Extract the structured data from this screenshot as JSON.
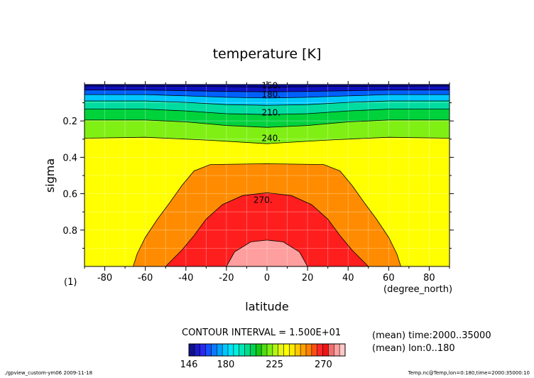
{
  "chart_data": {
    "type": "heatmap",
    "title": "temperature [K]",
    "xlabel": "latitude",
    "xunit": "(degree_north)",
    "ylabel": "sigma",
    "yunit": "(1)",
    "xlim": [
      -90,
      90
    ],
    "ylim": [
      0,
      1
    ],
    "y_inverted": true,
    "grid": true,
    "x_ticks": [
      -80,
      -60,
      -40,
      -20,
      0,
      20,
      40,
      60,
      80
    ],
    "y_ticks": [
      0.2,
      0.4,
      0.6,
      0.8
    ],
    "contour_levels": [
      150,
      165,
      180,
      195,
      210,
      225,
      240,
      255,
      270,
      285
    ],
    "contour_labels": [
      {
        "text": "150.",
        "x": 2,
        "y": 0.005
      },
      {
        "text": "180.",
        "x": 2,
        "y": 0.055
      },
      {
        "text": "210.",
        "x": 2,
        "y": 0.155
      },
      {
        "text": "240.",
        "x": 2,
        "y": 0.295
      },
      {
        "text": "270.",
        "x": -2,
        "y": 0.635
      }
    ],
    "fields": [
      {
        "level": 285,
        "points": [
          [
            -20,
            1.0
          ],
          [
            -16,
            0.92
          ],
          [
            -8,
            0.865
          ],
          [
            0,
            0.855
          ],
          [
            8,
            0.865
          ],
          [
            16,
            0.92
          ],
          [
            20,
            1.0
          ]
        ]
      },
      {
        "level": 270,
        "points": [
          [
            -50,
            1.0
          ],
          [
            -42,
            0.91
          ],
          [
            -36,
            0.83
          ],
          [
            -30,
            0.74
          ],
          [
            -22,
            0.66
          ],
          [
            -12,
            0.61
          ],
          [
            0,
            0.595
          ],
          [
            12,
            0.61
          ],
          [
            22,
            0.66
          ],
          [
            30,
            0.74
          ],
          [
            36,
            0.83
          ],
          [
            42,
            0.91
          ],
          [
            50,
            1.0
          ]
        ]
      },
      {
        "level": 255,
        "points": [
          [
            -66,
            1.0
          ],
          [
            -64,
            0.93
          ],
          [
            -60,
            0.84
          ],
          [
            -54,
            0.74
          ],
          [
            -48,
            0.65
          ],
          [
            -42,
            0.555
          ],
          [
            -36,
            0.475
          ],
          [
            -28,
            0.44
          ],
          [
            0,
            0.435
          ],
          [
            28,
            0.44
          ],
          [
            36,
            0.475
          ],
          [
            42,
            0.555
          ],
          [
            48,
            0.65
          ],
          [
            54,
            0.74
          ],
          [
            60,
            0.84
          ],
          [
            64,
            0.93
          ],
          [
            66,
            1.0
          ]
        ]
      },
      {
        "level": 240,
        "points": [
          [
            -90,
            0.295
          ],
          [
            -60,
            0.29
          ],
          [
            -30,
            0.305
          ],
          [
            0,
            0.325
          ],
          [
            30,
            0.305
          ],
          [
            60,
            0.29
          ],
          [
            90,
            0.295
          ]
        ]
      },
      {
        "level": 225,
        "points": [
          [
            -90,
            0.195
          ],
          [
            -60,
            0.195
          ],
          [
            -40,
            0.205
          ],
          [
            -20,
            0.225
          ],
          [
            0,
            0.235
          ],
          [
            20,
            0.225
          ],
          [
            40,
            0.205
          ],
          [
            60,
            0.195
          ],
          [
            90,
            0.195
          ]
        ]
      },
      {
        "level": 210,
        "points": [
          [
            -90,
            0.135
          ],
          [
            -60,
            0.135
          ],
          [
            -40,
            0.145
          ],
          [
            -20,
            0.16
          ],
          [
            0,
            0.165
          ],
          [
            20,
            0.16
          ],
          [
            40,
            0.145
          ],
          [
            60,
            0.135
          ],
          [
            90,
            0.135
          ]
        ]
      },
      {
        "level": 195,
        "points": [
          [
            -90,
            0.09
          ],
          [
            -60,
            0.09
          ],
          [
            -40,
            0.098
          ],
          [
            -20,
            0.11
          ],
          [
            0,
            0.114
          ],
          [
            20,
            0.11
          ],
          [
            40,
            0.098
          ],
          [
            60,
            0.09
          ],
          [
            90,
            0.09
          ]
        ]
      },
      {
        "level": 180,
        "points": [
          [
            -90,
            0.055
          ],
          [
            -60,
            0.055
          ],
          [
            -40,
            0.062
          ],
          [
            -20,
            0.07
          ],
          [
            0,
            0.074
          ],
          [
            20,
            0.07
          ],
          [
            40,
            0.062
          ],
          [
            60,
            0.055
          ],
          [
            90,
            0.055
          ]
        ]
      },
      {
        "level": 165,
        "points": [
          [
            -90,
            0.03
          ],
          [
            -60,
            0.03
          ],
          [
            -40,
            0.034
          ],
          [
            -20,
            0.038
          ],
          [
            0,
            0.04
          ],
          [
            20,
            0.038
          ],
          [
            40,
            0.034
          ],
          [
            60,
            0.03
          ],
          [
            90,
            0.03
          ]
        ]
      },
      {
        "level": 150,
        "points": [
          [
            -90,
            0.008
          ],
          [
            -30,
            0.01
          ],
          [
            0,
            0.014
          ],
          [
            30,
            0.01
          ],
          [
            90,
            0.008
          ]
        ]
      }
    ],
    "colorbar": {
      "levels": [
        150,
        155,
        160,
        165,
        170,
        175,
        180,
        185,
        190,
        195,
        200,
        205,
        210,
        215,
        220,
        225,
        230,
        235,
        240,
        245,
        250,
        255,
        260,
        265,
        270,
        275,
        280,
        285
      ],
      "colors": [
        "#10108a",
        "#1a1ac8",
        "#2828f0",
        "#1450ff",
        "#0a78ff",
        "#00a0ff",
        "#00c8ff",
        "#00e4f8",
        "#00f0dc",
        "#00e6b4",
        "#00dc8c",
        "#00d250",
        "#14c814",
        "#50dc14",
        "#80ee14",
        "#b4f514",
        "#e6f514",
        "#ffff00",
        "#ffeb00",
        "#ffc800",
        "#ffa000",
        "#ff8200",
        "#ff5014",
        "#ff2828",
        "#f01414",
        "#f06e6e",
        "#ffa0a0",
        "#ffc8c8"
      ],
      "tick_labels": [
        "146",
        "180",
        "225",
        "270"
      ],
      "tick_values": [
        146,
        180,
        225,
        270
      ]
    }
  },
  "contour_interval": "CONTOUR INTERVAL = 1.500E+01",
  "mean_info": [
    "(mean) time:2000..35000",
    "(mean) lon:0..180"
  ],
  "footer_left": "./gpview_custom-ym06  2009-11-18",
  "footer_right": "Temp.nc@Temp,lon=0:180,time=2000:35000:10",
  "fill_colors": {
    "150": "#1010c0",
    "165": "#0060ff",
    "180": "#00c8ff",
    "195": "#00dca0",
    "210": "#00d23c",
    "225": "#80f014",
    "240": "#ffff00",
    "255": "#ff8c00",
    "270": "#ff1e1e",
    "285": "#ff9e9e",
    "top": "#0000a0"
  }
}
